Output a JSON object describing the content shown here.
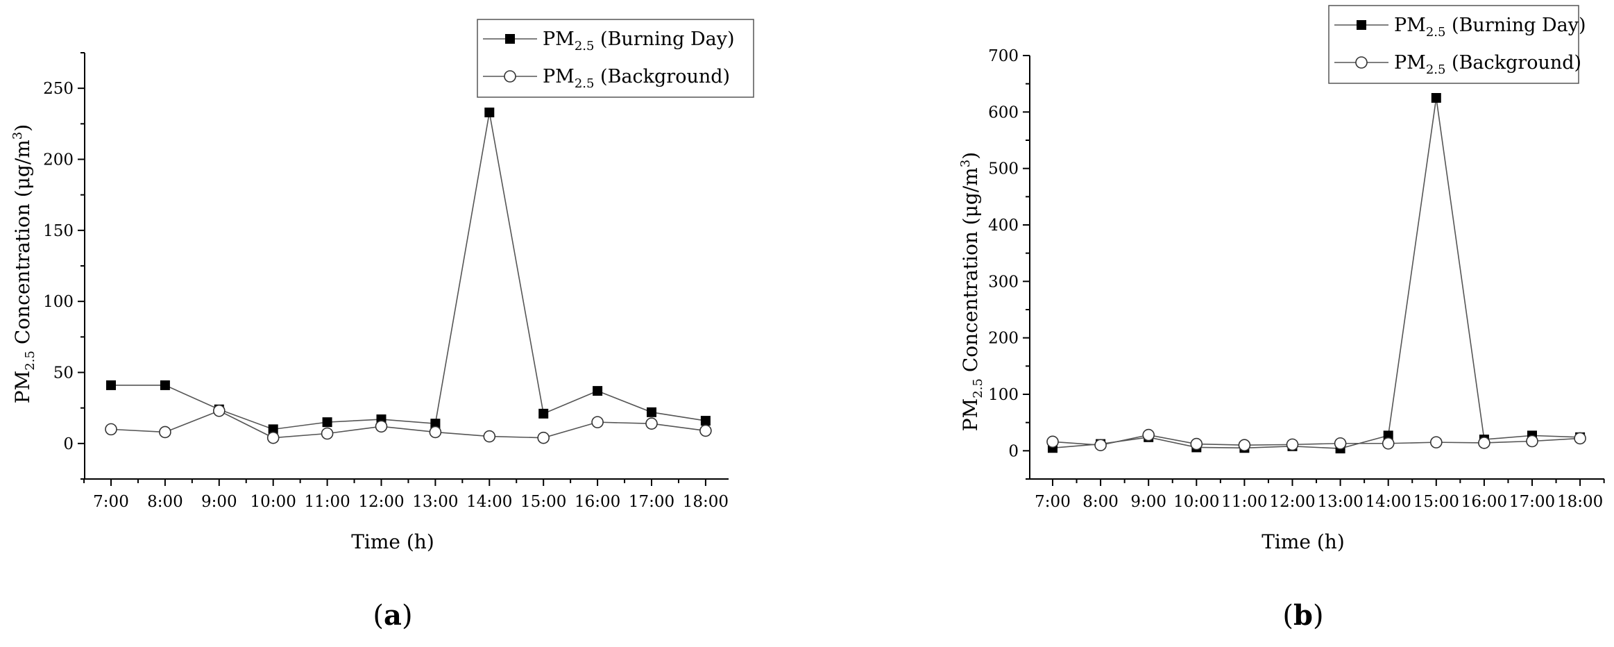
{
  "colors": {
    "line": "#555555",
    "axis": "#000000",
    "burning_marker": "#000000",
    "background_marker": "#ffffff"
  },
  "chart_data": [
    {
      "panel_label": "a",
      "type": "line",
      "title": "",
      "xlabel": "Time (h)",
      "ylabel": {
        "main": "PM",
        "sub": "2.5",
        "rest": " Concentration (μg/m",
        "sup": "3",
        "close": ")"
      },
      "categories": [
        "7:00",
        "8:00",
        "9:00",
        "10:00",
        "11:00",
        "12:00",
        "13:00",
        "14:00",
        "15:00",
        "16:00",
        "17:00",
        "18:00"
      ],
      "ylim": [
        -25,
        275
      ],
      "yticks": [
        0,
        50,
        100,
        150,
        200,
        250
      ],
      "yticklabels": [
        "0",
        "50",
        "100",
        "150",
        "200",
        "250"
      ],
      "legend_position": "top-right",
      "series": [
        {
          "name": "PM2.5 (Burning Day)",
          "legend": {
            "main": "PM",
            "sub": "2.5",
            "rest": " (Burning Day)"
          },
          "marker": "square",
          "values": [
            41,
            41,
            24,
            10,
            15,
            17,
            14,
            233,
            21,
            37,
            22,
            16
          ]
        },
        {
          "name": "PM2.5 (Background)",
          "legend": {
            "main": "PM",
            "sub": "2.5",
            "rest": " (Background)"
          },
          "marker": "circle",
          "values": [
            10,
            8,
            23,
            4,
            7,
            12,
            8,
            5,
            4,
            15,
            14,
            9
          ]
        }
      ]
    },
    {
      "panel_label": "b",
      "type": "line",
      "title": "",
      "xlabel": "Time (h)",
      "ylabel": {
        "main": "PM",
        "sub": "2.5",
        "rest": " Concentration (μg/m",
        "sup": "3",
        "close": ")"
      },
      "categories": [
        "7:00",
        "8:00",
        "9:00",
        "10:00",
        "11:00",
        "12:00",
        "13:00",
        "14:00",
        "15:00",
        "16:00",
        "17:00",
        "18:00"
      ],
      "ylim": [
        -50,
        700
      ],
      "yticks": [
        0,
        100,
        200,
        300,
        400,
        500,
        600,
        700
      ],
      "yticklabels": [
        "0",
        "100",
        "200",
        "300",
        "400",
        "500",
        "600",
        "700"
      ],
      "legend_position": "top-right",
      "series": [
        {
          "name": "PM2.5 (Burning Day)",
          "legend": {
            "main": "PM",
            "sub": "2.5",
            "rest": " (Burning Day)"
          },
          "marker": "square",
          "values": [
            5,
            12,
            24,
            6,
            5,
            8,
            4,
            27,
            625,
            20,
            27,
            24
          ]
        },
        {
          "name": "PM2.5 (Background)",
          "legend": {
            "main": "PM",
            "sub": "2.5",
            "rest": " (Background)"
          },
          "marker": "circle",
          "values": [
            16,
            10,
            28,
            12,
            10,
            11,
            13,
            13,
            15,
            14,
            17,
            22
          ]
        }
      ]
    }
  ]
}
